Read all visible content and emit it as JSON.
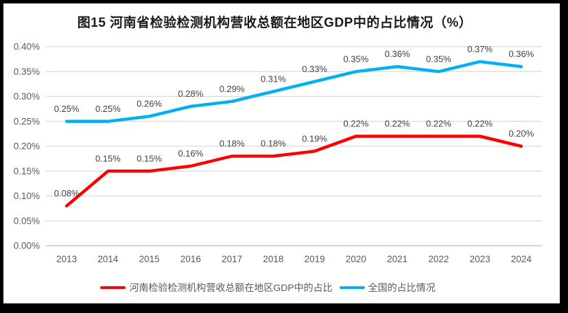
{
  "title": "图15  河南省检验检测机构营收总额在地区GDP中的占比情况（%）",
  "chart_data": {
    "type": "line",
    "categories": [
      "2013",
      "2014",
      "2015",
      "2016",
      "2017",
      "2018",
      "2019",
      "2020",
      "2021",
      "2022",
      "2023",
      "2024"
    ],
    "series": [
      {
        "id": "henan",
        "name": "河南检验检测机构营收总额在地区GDP中的占比",
        "color": "#FF0000",
        "values": [
          0.08,
          0.15,
          0.15,
          0.16,
          0.18,
          0.18,
          0.19,
          0.22,
          0.22,
          0.22,
          0.22,
          0.2
        ],
        "data_labels": [
          "0.08%",
          "0.15%",
          "0.15%",
          "0.16%",
          "0.18%",
          "0.18%",
          "0.19%",
          "0.22%",
          "0.22%",
          "0.22%",
          "0.22%",
          "0.20%"
        ]
      },
      {
        "id": "national",
        "name": "全国的占比情况",
        "color": "#00B0F0",
        "values": [
          0.25,
          0.25,
          0.26,
          0.28,
          0.29,
          0.31,
          0.33,
          0.35,
          0.36,
          0.35,
          0.37,
          0.36
        ],
        "data_labels": [
          "0.25%",
          "0.25%",
          "0.26%",
          "0.28%",
          "0.29%",
          "0.31%",
          "0.33%",
          "0.35%",
          "0.36%",
          "0.35%",
          "0.37%",
          "0.36%"
        ]
      }
    ],
    "y_ticks": [
      "0.00%",
      "0.05%",
      "0.10%",
      "0.15%",
      "0.20%",
      "0.25%",
      "0.30%",
      "0.35%",
      "0.40%"
    ],
    "ylim": [
      0,
      0.4
    ],
    "grid": true,
    "legend_position": "bottom",
    "colors": {
      "gridline": "#D9D9D9",
      "axis_line": "#BFBFBF",
      "tick_label": "#595959",
      "data_label": "#404040",
      "frame_border": "#000000"
    }
  }
}
